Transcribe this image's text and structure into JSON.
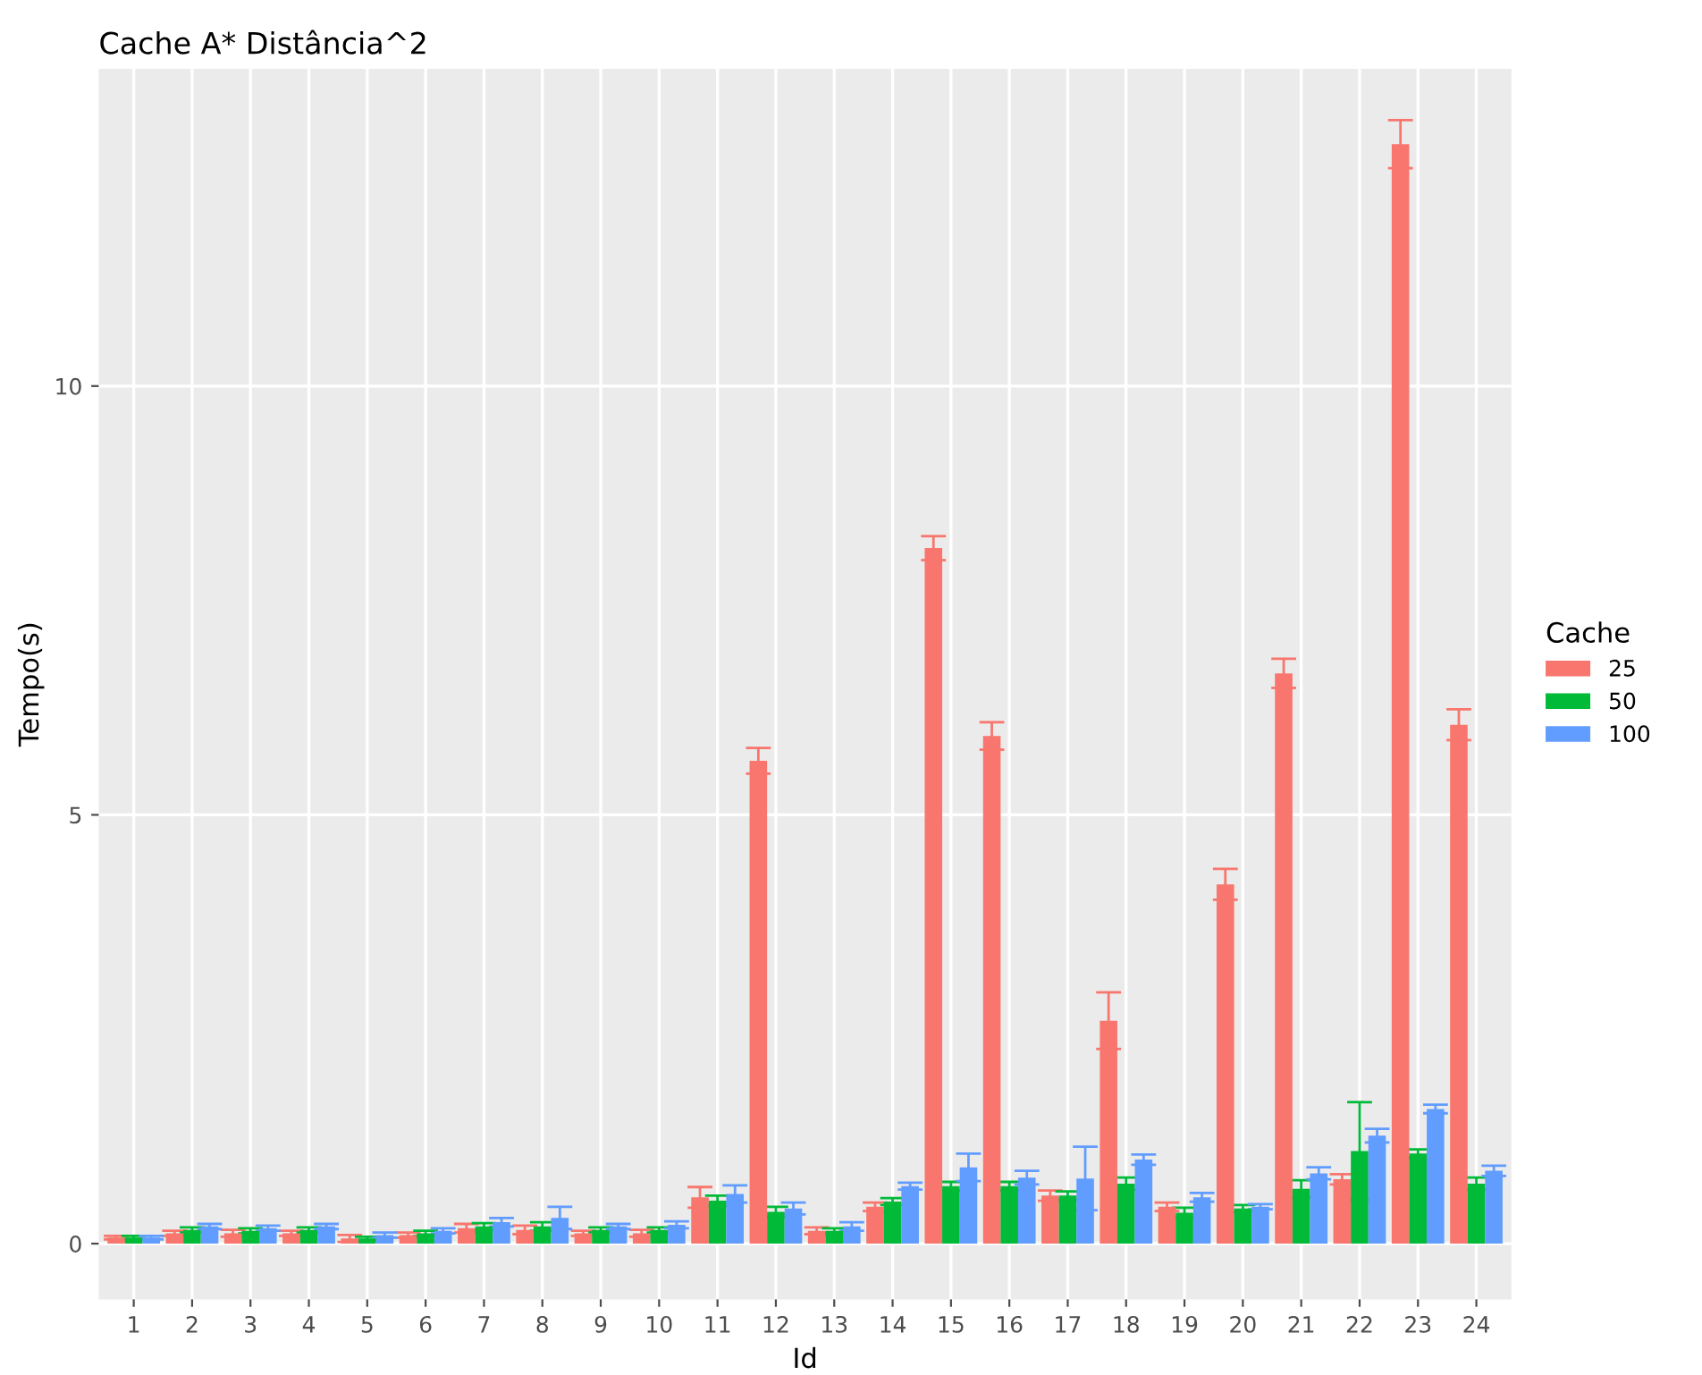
{
  "chart_data": {
    "type": "bar",
    "title": "Cache A* Distância^2",
    "xlabel": "Id",
    "ylabel": "Tempo(s)",
    "legend_title": "Cache",
    "legend": "right",
    "grid": true,
    "categories": [
      "1",
      "2",
      "3",
      "4",
      "5",
      "6",
      "7",
      "8",
      "9",
      "10",
      "11",
      "12",
      "13",
      "14",
      "15",
      "16",
      "17",
      "18",
      "19",
      "20",
      "21",
      "22",
      "23",
      "24"
    ],
    "ylim": [
      -0.65,
      13.7
    ],
    "yticks": [
      0,
      5,
      10
    ],
    "series": [
      {
        "name": "25",
        "color": "#f8766d",
        "values": [
          0.07,
          0.12,
          0.12,
          0.12,
          0.06,
          0.1,
          0.18,
          0.16,
          0.12,
          0.12,
          0.54,
          5.63,
          0.15,
          0.43,
          8.11,
          5.92,
          0.56,
          2.6,
          0.43,
          4.19,
          6.65,
          0.75,
          12.82,
          6.05
        ],
        "errors": [
          0.02,
          0.03,
          0.04,
          0.03,
          0.04,
          0.03,
          0.05,
          0.05,
          0.03,
          0.04,
          0.12,
          0.15,
          0.04,
          0.05,
          0.14,
          0.16,
          0.06,
          0.33,
          0.05,
          0.18,
          0.17,
          0.06,
          0.28,
          0.18
        ]
      },
      {
        "name": "50",
        "color": "#00ba38",
        "values": [
          0.07,
          0.16,
          0.15,
          0.16,
          0.06,
          0.12,
          0.2,
          0.2,
          0.16,
          0.16,
          0.5,
          0.37,
          0.15,
          0.49,
          0.67,
          0.67,
          0.56,
          0.7,
          0.36,
          0.41,
          0.64,
          1.08,
          1.05,
          0.7
        ],
        "errors": [
          0.02,
          0.03,
          0.03,
          0.03,
          0.02,
          0.03,
          0.04,
          0.05,
          0.03,
          0.03,
          0.06,
          0.06,
          0.03,
          0.04,
          0.05,
          0.05,
          0.05,
          0.07,
          0.06,
          0.04,
          0.1,
          0.57,
          0.05,
          0.07
        ]
      },
      {
        "name": "100",
        "color": "#619cff",
        "values": [
          0.07,
          0.2,
          0.18,
          0.2,
          0.1,
          0.15,
          0.25,
          0.3,
          0.2,
          0.22,
          0.58,
          0.41,
          0.2,
          0.67,
          0.89,
          0.77,
          0.76,
          0.98,
          0.54,
          0.43,
          0.82,
          1.26,
          1.57,
          0.85
        ],
        "errors": [
          0.02,
          0.03,
          0.03,
          0.03,
          0.03,
          0.03,
          0.05,
          0.13,
          0.03,
          0.04,
          0.1,
          0.07,
          0.05,
          0.04,
          0.16,
          0.08,
          0.37,
          0.06,
          0.05,
          0.03,
          0.07,
          0.08,
          0.05,
          0.06
        ]
      }
    ]
  }
}
